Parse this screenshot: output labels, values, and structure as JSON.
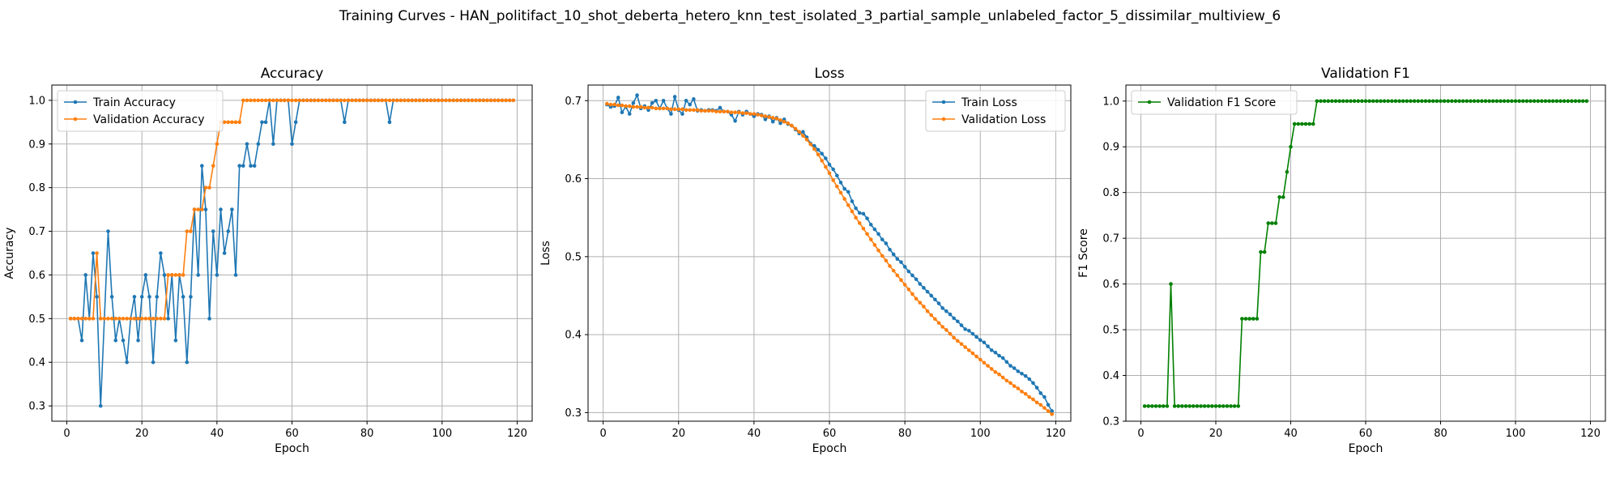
{
  "figure": {
    "title": "Training Curves - HAN_politifact_10_shot_deberta_hetero_knn_test_isolated_3_partial_sample_unlabeled_factor_5_dissimilar_multiview_6"
  },
  "chart_data": [
    {
      "type": "line",
      "title": "Accuracy",
      "xlabel": "Epoch",
      "ylabel": "Accuracy",
      "xlim": [
        -4,
        124
      ],
      "ylim": [
        0.265,
        1.035
      ],
      "xticks": [
        0,
        20,
        40,
        60,
        80,
        100,
        120
      ],
      "yticks": [
        0.3,
        0.4,
        0.5,
        0.6,
        0.7,
        0.8,
        0.9,
        1.0
      ],
      "grid": true,
      "legend": "upper-left",
      "x": {
        "start": 1,
        "end": 119
      },
      "series": [
        {
          "name": "Train Accuracy",
          "color": "#1f77b4",
          "values": [
            0.5,
            0.5,
            0.5,
            0.45,
            0.6,
            0.5,
            0.65,
            0.55,
            0.3,
            0.5,
            0.7,
            0.55,
            0.45,
            0.5,
            0.45,
            0.4,
            0.5,
            0.55,
            0.45,
            0.55,
            0.6,
            0.55,
            0.4,
            0.55,
            0.65,
            0.6,
            0.5,
            0.6,
            0.45,
            0.6,
            0.55,
            0.4,
            0.55,
            0.75,
            0.6,
            0.85,
            0.75,
            0.5,
            0.7,
            0.6,
            0.75,
            0.65,
            0.7,
            0.75,
            0.6,
            0.85,
            0.85,
            0.9,
            0.85,
            0.85,
            0.9,
            0.95,
            0.95,
            1.0,
            0.9,
            1.0,
            1.0,
            1.0,
            1.0,
            0.9,
            0.95,
            1.0,
            1.0,
            1.0,
            1.0,
            1.0,
            1.0,
            1.0,
            1.0,
            1.0,
            1.0,
            1.0,
            1.0,
            0.95,
            1.0,
            1.0,
            1.0,
            1.0,
            1.0,
            1.0,
            1.0,
            1.0,
            1.0,
            1.0,
            1.0,
            0.95,
            1.0,
            1.0,
            1.0,
            1.0,
            1.0,
            1.0,
            1.0,
            1.0,
            1.0,
            1.0,
            1.0,
            1.0,
            1.0,
            1.0,
            1.0,
            1.0,
            1.0,
            1.0,
            1.0,
            1.0,
            1.0,
            1.0,
            1.0,
            1.0,
            1.0,
            1.0,
            1.0,
            1.0,
            1.0,
            1.0,
            1.0,
            1.0,
            1.0
          ]
        },
        {
          "name": "Validation Accuracy",
          "color": "#ff7f0e",
          "values": [
            0.5,
            0.5,
            0.5,
            0.5,
            0.5,
            0.5,
            0.5,
            0.65,
            0.5,
            0.5,
            0.5,
            0.5,
            0.5,
            0.5,
            0.5,
            0.5,
            0.5,
            0.5,
            0.5,
            0.5,
            0.5,
            0.5,
            0.5,
            0.5,
            0.5,
            0.5,
            0.6,
            0.6,
            0.6,
            0.6,
            0.6,
            0.7,
            0.7,
            0.75,
            0.75,
            0.75,
            0.8,
            0.8,
            0.85,
            0.9,
            0.95,
            0.95,
            0.95,
            0.95,
            0.95,
            0.95,
            1.0,
            1.0,
            1.0,
            1.0,
            1.0,
            1.0,
            1.0,
            1.0,
            1.0,
            1.0,
            1.0,
            1.0,
            1.0,
            1.0,
            1.0,
            1.0,
            1.0,
            1.0,
            1.0,
            1.0,
            1.0,
            1.0,
            1.0,
            1.0,
            1.0,
            1.0,
            1.0,
            1.0,
            1.0,
            1.0,
            1.0,
            1.0,
            1.0,
            1.0,
            1.0,
            1.0,
            1.0,
            1.0,
            1.0,
            1.0,
            1.0,
            1.0,
            1.0,
            1.0,
            1.0,
            1.0,
            1.0,
            1.0,
            1.0,
            1.0,
            1.0,
            1.0,
            1.0,
            1.0,
            1.0,
            1.0,
            1.0,
            1.0,
            1.0,
            1.0,
            1.0,
            1.0,
            1.0,
            1.0,
            1.0,
            1.0,
            1.0,
            1.0,
            1.0,
            1.0,
            1.0,
            1.0,
            1.0
          ]
        }
      ]
    },
    {
      "type": "line",
      "title": "Loss",
      "xlabel": "Epoch",
      "ylabel": "Loss",
      "xlim": [
        -4,
        124
      ],
      "ylim": [
        0.289,
        0.72
      ],
      "xticks": [
        0,
        20,
        40,
        60,
        80,
        100,
        120
      ],
      "yticks": [
        0.3,
        0.4,
        0.5,
        0.6,
        0.7
      ],
      "grid": true,
      "legend": "upper-right",
      "x": {
        "start": 1,
        "end": 119
      },
      "series": [
        {
          "name": "Train Loss",
          "color": "#1f77b4",
          "values": [
            0.695,
            0.692,
            0.693,
            0.704,
            0.685,
            0.692,
            0.683,
            0.697,
            0.707,
            0.69,
            0.693,
            0.688,
            0.697,
            0.7,
            0.69,
            0.7,
            0.69,
            0.683,
            0.705,
            0.688,
            0.683,
            0.7,
            0.695,
            0.702,
            0.687,
            0.688,
            0.687,
            0.688,
            0.688,
            0.687,
            0.691,
            0.686,
            0.686,
            0.682,
            0.674,
            0.686,
            0.682,
            0.686,
            0.683,
            0.68,
            0.683,
            0.682,
            0.676,
            0.68,
            0.673,
            0.678,
            0.671,
            0.676,
            0.67,
            0.668,
            0.663,
            0.658,
            0.66,
            0.653,
            0.645,
            0.642,
            0.637,
            0.632,
            0.626,
            0.618,
            0.612,
            0.604,
            0.595,
            0.587,
            0.583,
            0.571,
            0.562,
            0.556,
            0.555,
            0.549,
            0.541,
            0.535,
            0.529,
            0.522,
            0.517,
            0.509,
            0.503,
            0.497,
            0.493,
            0.487,
            0.481,
            0.476,
            0.471,
            0.465,
            0.46,
            0.455,
            0.45,
            0.445,
            0.44,
            0.434,
            0.43,
            0.426,
            0.421,
            0.417,
            0.412,
            0.407,
            0.405,
            0.401,
            0.397,
            0.393,
            0.39,
            0.385,
            0.38,
            0.377,
            0.373,
            0.37,
            0.365,
            0.36,
            0.357,
            0.353,
            0.35,
            0.347,
            0.343,
            0.338,
            0.332,
            0.325,
            0.32,
            0.31,
            0.302
          ]
        },
        {
          "name": "Validation Loss",
          "color": "#ff7f0e",
          "values": [
            0.696,
            0.695,
            0.695,
            0.694,
            0.694,
            0.693,
            0.693,
            0.692,
            0.692,
            0.692,
            0.691,
            0.691,
            0.691,
            0.69,
            0.69,
            0.69,
            0.69,
            0.689,
            0.689,
            0.689,
            0.689,
            0.688,
            0.688,
            0.688,
            0.688,
            0.687,
            0.687,
            0.687,
            0.687,
            0.686,
            0.686,
            0.686,
            0.686,
            0.685,
            0.685,
            0.685,
            0.684,
            0.684,
            0.683,
            0.683,
            0.682,
            0.681,
            0.68,
            0.679,
            0.678,
            0.677,
            0.675,
            0.673,
            0.671,
            0.668,
            0.664,
            0.66,
            0.655,
            0.65,
            0.644,
            0.638,
            0.631,
            0.623,
            0.615,
            0.607,
            0.598,
            0.59,
            0.582,
            0.574,
            0.566,
            0.558,
            0.55,
            0.543,
            0.536,
            0.529,
            0.522,
            0.515,
            0.508,
            0.501,
            0.495,
            0.488,
            0.482,
            0.476,
            0.47,
            0.464,
            0.458,
            0.452,
            0.446,
            0.441,
            0.436,
            0.43,
            0.425,
            0.42,
            0.415,
            0.41,
            0.406,
            0.401,
            0.396,
            0.392,
            0.388,
            0.384,
            0.38,
            0.376,
            0.372,
            0.368,
            0.364,
            0.36,
            0.356,
            0.352,
            0.349,
            0.345,
            0.341,
            0.338,
            0.334,
            0.331,
            0.327,
            0.324,
            0.32,
            0.317,
            0.313,
            0.31,
            0.306,
            0.302,
            0.298
          ]
        }
      ]
    },
    {
      "type": "line",
      "title": "Validation F1",
      "xlabel": "Epoch",
      "ylabel": "F1 Score",
      "xlim": [
        -4,
        124
      ],
      "ylim": [
        0.3,
        1.035
      ],
      "xticks": [
        0,
        20,
        40,
        60,
        80,
        100,
        120
      ],
      "yticks": [
        0.3,
        0.4,
        0.5,
        0.6,
        0.7,
        0.8,
        0.9,
        1.0
      ],
      "grid": true,
      "legend": "upper-left",
      "x": {
        "start": 1,
        "end": 119
      },
      "series": [
        {
          "name": "Validation F1 Score",
          "color": "#008000",
          "values": [
            0.333,
            0.333,
            0.333,
            0.333,
            0.333,
            0.333,
            0.333,
            0.6,
            0.333,
            0.333,
            0.333,
            0.333,
            0.333,
            0.333,
            0.333,
            0.333,
            0.333,
            0.333,
            0.333,
            0.333,
            0.333,
            0.333,
            0.333,
            0.333,
            0.333,
            0.333,
            0.524,
            0.524,
            0.524,
            0.524,
            0.524,
            0.67,
            0.67,
            0.733,
            0.733,
            0.733,
            0.79,
            0.79,
            0.845,
            0.9,
            0.95,
            0.95,
            0.95,
            0.95,
            0.95,
            0.95,
            1.0,
            1.0,
            1.0,
            1.0,
            1.0,
            1.0,
            1.0,
            1.0,
            1.0,
            1.0,
            1.0,
            1.0,
            1.0,
            1.0,
            1.0,
            1.0,
            1.0,
            1.0,
            1.0,
            1.0,
            1.0,
            1.0,
            1.0,
            1.0,
            1.0,
            1.0,
            1.0,
            1.0,
            1.0,
            1.0,
            1.0,
            1.0,
            1.0,
            1.0,
            1.0,
            1.0,
            1.0,
            1.0,
            1.0,
            1.0,
            1.0,
            1.0,
            1.0,
            1.0,
            1.0,
            1.0,
            1.0,
            1.0,
            1.0,
            1.0,
            1.0,
            1.0,
            1.0,
            1.0,
            1.0,
            1.0,
            1.0,
            1.0,
            1.0,
            1.0,
            1.0,
            1.0,
            1.0,
            1.0,
            1.0,
            1.0,
            1.0,
            1.0,
            1.0,
            1.0,
            1.0,
            1.0,
            1.0
          ]
        }
      ]
    }
  ]
}
